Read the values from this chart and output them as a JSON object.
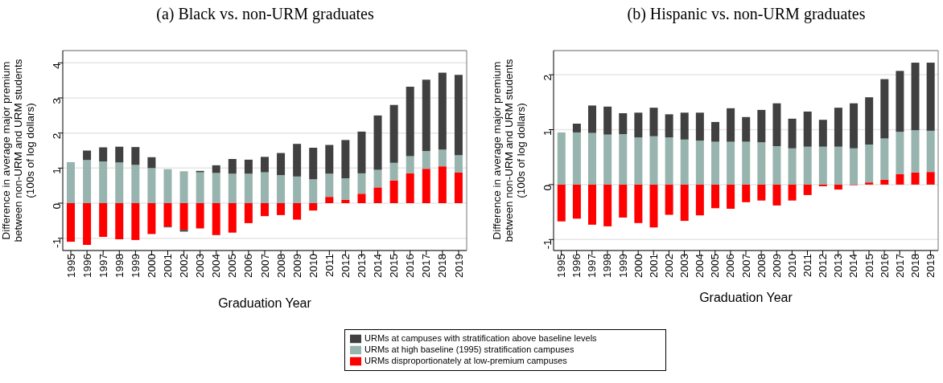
{
  "chart_data": [
    {
      "type": "bar",
      "stacked": true,
      "title": "(a) Black vs. non-URM graduates",
      "xlabel": "Graduation Year",
      "ylabel": "Difference in average major premium\nbetween non-URM and URM students\n(100s of log dollars)",
      "categories": [
        "1995",
        "1996",
        "1997",
        "1998",
        "1999",
        "2000",
        "2001",
        "2002",
        "2003",
        "2004",
        "2005",
        "2006",
        "2007",
        "2008",
        "2009",
        "2010",
        "2011",
        "2012",
        "2013",
        "2014",
        "2015",
        "2016",
        "2017",
        "2018",
        "2019"
      ],
      "ylim": [
        -1.35,
        4.35
      ],
      "yticks": [
        -1,
        0,
        1,
        2,
        3,
        4
      ],
      "grid": "y",
      "legend": "bottom",
      "series": [
        {
          "name": "URMs disproportionately at low-premium campuses",
          "color": "#ff0000",
          "values": [
            -1.1,
            -1.19,
            -0.96,
            -1.03,
            -1.05,
            -0.88,
            -0.67,
            -0.76,
            -0.72,
            -0.91,
            -0.84,
            -0.57,
            -0.37,
            -0.34,
            -0.47,
            -0.21,
            0.18,
            0.1,
            0.27,
            0.45,
            0.65,
            0.85,
            0.98,
            1.05,
            0.87
          ]
        },
        {
          "name": "URMs at high baseline (1995) stratification campuses",
          "color": "#98b4ae",
          "values": [
            1.17,
            1.23,
            1.19,
            1.16,
            1.09,
            1.0,
            0.97,
            0.91,
            0.88,
            0.86,
            0.84,
            0.84,
            0.88,
            0.8,
            0.76,
            0.68,
            0.66,
            0.61,
            0.58,
            0.5,
            0.5,
            0.49,
            0.5,
            0.48,
            0.5
          ]
        },
        {
          "name": "URMs at campuses with stratification above baseline levels",
          "color": "#404040",
          "values": [
            0,
            0.27,
            0.4,
            0.45,
            0.51,
            0.31,
            -0.02,
            -0.05,
            0.04,
            0.22,
            0.42,
            0.4,
            0.44,
            0.63,
            0.93,
            0.9,
            0.82,
            1.09,
            1.19,
            1.55,
            1.65,
            1.98,
            2.04,
            2.19,
            2.29
          ]
        }
      ]
    },
    {
      "type": "bar",
      "stacked": true,
      "title": "(b) Hispanic vs. non-URM graduates",
      "xlabel": "Graduation Year",
      "ylabel": "Difference in average major premium\nbetween non-URM and URM students\n(100s of log dollars)",
      "categories": [
        "1995",
        "1996",
        "1997",
        "1998",
        "1999",
        "2000",
        "2001",
        "2002",
        "2003",
        "2004",
        "2005",
        "2006",
        "2007",
        "2008",
        "2009",
        "2010",
        "2011",
        "2012",
        "2013",
        "2014",
        "2015",
        "2016",
        "2017",
        "2018",
        "2019"
      ],
      "ylim": [
        -1.2,
        2.44
      ],
      "yticks": [
        -1,
        0,
        1,
        2
      ],
      "grid": "y",
      "series": [
        {
          "color": "#ff0000",
          "values": [
            -0.67,
            -0.62,
            -0.73,
            -0.76,
            -0.6,
            -0.7,
            -0.78,
            -0.55,
            -0.66,
            -0.56,
            -0.43,
            -0.44,
            -0.32,
            -0.29,
            -0.38,
            -0.29,
            -0.19,
            -0.03,
            -0.09,
            -0.01,
            0.04,
            0.09,
            0.19,
            0.22,
            0.23
          ]
        },
        {
          "color": "#98b4ae",
          "values": [
            0.95,
            0.95,
            0.94,
            0.91,
            0.92,
            0.86,
            0.88,
            0.86,
            0.82,
            0.8,
            0.78,
            0.78,
            0.78,
            0.77,
            0.7,
            0.66,
            0.69,
            0.69,
            0.69,
            0.66,
            0.69,
            0.75,
            0.77,
            0.77,
            0.75
          ]
        },
        {
          "color": "#404040",
          "values": [
            0,
            0.16,
            0.5,
            0.51,
            0.38,
            0.45,
            0.52,
            0.42,
            0.49,
            0.51,
            0.36,
            0.61,
            0.45,
            0.59,
            0.78,
            0.54,
            0.64,
            0.49,
            0.71,
            0.82,
            0.86,
            1.08,
            1.11,
            1.23,
            1.24
          ]
        }
      ]
    }
  ]
}
